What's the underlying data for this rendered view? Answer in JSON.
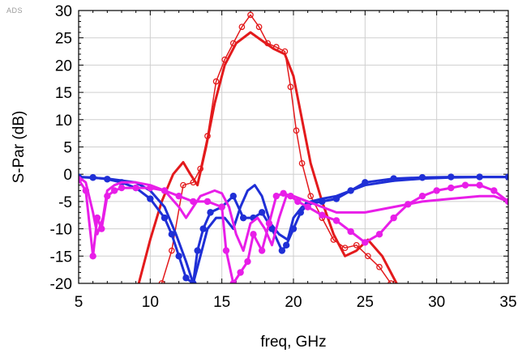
{
  "badge": "ADS",
  "chart_data": {
    "type": "line",
    "title": "",
    "xlabel": "freq, GHz",
    "ylabel": "S-Par (dB)",
    "xlim": [
      5,
      35
    ],
    "ylim": [
      -20,
      30
    ],
    "xticks": [
      5,
      10,
      15,
      20,
      25,
      30,
      35
    ],
    "yticks": [
      30,
      25,
      20,
      15,
      10,
      5,
      0,
      -5,
      -10,
      -15,
      -20
    ],
    "grid": true,
    "legend": "none",
    "series": [
      {
        "color": "#e31a1c",
        "style": "line-open-circle",
        "x": [
          10.8,
          11.5,
          12.3,
          13,
          13.5,
          14,
          14.6,
          15.2,
          15.8,
          16.4,
          17,
          17.6,
          18.2,
          18.8,
          19.4,
          19.8,
          20.2,
          20.6,
          21.2,
          22,
          22.8,
          23.6,
          24.4,
          25.2,
          26,
          26.8
        ],
        "y": [
          -20,
          -14,
          -2,
          -1.5,
          1,
          7,
          17,
          21,
          24,
          27,
          29.2,
          27,
          24,
          23.3,
          22.5,
          16,
          8,
          2,
          -4,
          -8,
          -12,
          -13.5,
          -13,
          -15,
          -17,
          -20
        ]
      },
      {
        "color": "#e31a1c",
        "style": "thick-line",
        "x": [
          9.2,
          10,
          10.8,
          11.6,
          12.3,
          12.8,
          13.3,
          13.9,
          14.5,
          15.2,
          16,
          17,
          17.8,
          18.6,
          19.4,
          20,
          20.6,
          21.2,
          22,
          22.8,
          23.6,
          24.4,
          25.2,
          26.2,
          27.2
        ],
        "y": [
          -20,
          -12,
          -5,
          0,
          2.2,
          0,
          -2,
          5,
          13,
          20,
          24,
          26,
          24.5,
          23,
          22,
          18,
          10,
          2,
          -5,
          -11,
          -15,
          -14,
          -12,
          -15,
          -20
        ]
      },
      {
        "color": "#1f2fd6",
        "style": "thick-dot",
        "x": [
          5,
          6,
          7,
          8,
          9,
          10,
          11,
          11.5,
          12,
          12.5,
          13,
          13.3,
          13.7,
          14.2,
          15,
          15.8,
          16.5,
          17.2,
          17.8,
          18.5,
          19.2,
          19.5,
          20,
          20.5,
          21,
          22,
          23,
          24,
          25,
          27,
          29,
          31,
          33,
          35
        ],
        "y": [
          -0.5,
          -0.6,
          -0.9,
          -1.5,
          -2.5,
          -4.5,
          -8,
          -11,
          -15,
          -19,
          -20,
          -14,
          -10,
          -7,
          -6,
          -4,
          -8,
          -8,
          -7,
          -10,
          -14,
          -13,
          -10,
          -7,
          -5.5,
          -5,
          -4.5,
          -3,
          -1.5,
          -0.8,
          -0.6,
          -0.5,
          -0.5,
          -0.5
        ]
      },
      {
        "color": "#1f2fd6",
        "style": "thick-line",
        "x": [
          5,
          7,
          9,
          10,
          11,
          11.8,
          12.5,
          13,
          13.5,
          14,
          14.6,
          15.2,
          15.8,
          16.3,
          16.8,
          17.3,
          17.8,
          18.4,
          19,
          19.6,
          20,
          20.6,
          21.2,
          22,
          23,
          24,
          25,
          27,
          29,
          31,
          33,
          35
        ],
        "y": [
          -0.5,
          -0.8,
          -1.5,
          -3,
          -6,
          -11,
          -16,
          -20,
          -15,
          -10,
          -8,
          -8,
          -10,
          -6,
          -3,
          -2,
          -4,
          -9,
          -11,
          -12,
          -8,
          -6,
          -5,
          -4.5,
          -4,
          -3,
          -2,
          -1.2,
          -0.8,
          -0.6,
          -0.5,
          -0.5
        ]
      },
      {
        "color": "#e81ee8",
        "style": "thick-dot",
        "x": [
          5,
          5.5,
          6,
          6.3,
          6.6,
          7,
          7.5,
          8,
          9,
          10,
          11,
          12,
          13,
          14,
          15,
          15.3,
          15.8,
          16.3,
          16.8,
          17.2,
          17.8,
          18.3,
          18.8,
          19.3,
          19.8,
          20.3,
          21,
          22,
          23,
          24,
          25,
          26,
          27,
          28,
          29,
          30,
          31,
          32,
          33,
          34,
          35
        ],
        "y": [
          -1,
          -3,
          -15,
          -8,
          -10,
          -4,
          -3,
          -2.5,
          -2.5,
          -2.5,
          -3,
          -4,
          -5,
          -5,
          -6,
          -14,
          -20,
          -18,
          -16,
          -11,
          -14,
          -9,
          -4,
          -3.5,
          -4,
          -5,
          -6,
          -7.5,
          -8.5,
          -10.5,
          -12.5,
          -11,
          -8,
          -5.5,
          -4,
          -3,
          -2.5,
          -2,
          -2,
          -3,
          -5
        ]
      },
      {
        "color": "#e81ee8",
        "style": "thick-line",
        "x": [
          5,
          5.5,
          6,
          6.3,
          6.7,
          7,
          7.5,
          8,
          9,
          10,
          11,
          12,
          12.5,
          13.5,
          14.5,
          15,
          15.5,
          16,
          16.5,
          17,
          17.5,
          18,
          18.5,
          19,
          19.5,
          20,
          21,
          22,
          23,
          24,
          25,
          27,
          29,
          31,
          33,
          34,
          35
        ],
        "y": [
          -0.5,
          -1.5,
          -7,
          -11,
          -8,
          -3,
          -2,
          -1.5,
          -1.5,
          -2,
          -3,
          -6,
          -8,
          -4,
          -3,
          -3.5,
          -6,
          -11,
          -14,
          -9,
          -8,
          -10,
          -13,
          -8,
          -4,
          -4,
          -5,
          -6,
          -7,
          -7,
          -7,
          -6,
          -5,
          -4.5,
          -4,
          -4,
          -5
        ]
      }
    ]
  }
}
